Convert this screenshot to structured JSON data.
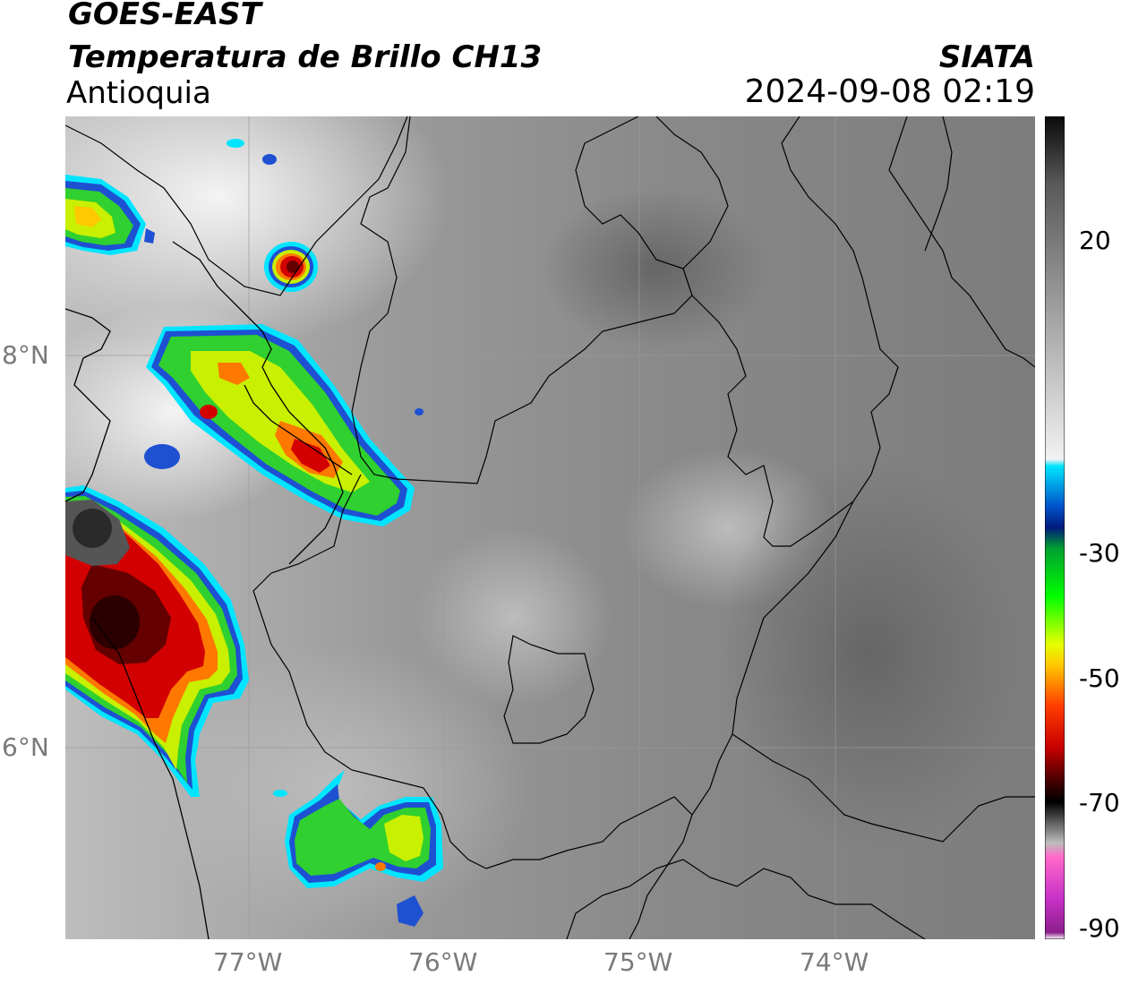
{
  "header": {
    "satellite": "GOES-EAST",
    "product": "Temperatura de Brillo CH13",
    "region": "Antioquia",
    "organization": "SIATA",
    "datetime": "2024-09-08 02:19"
  },
  "axes": {
    "lat_ticks": [
      "8°N",
      "6°N"
    ],
    "lon_ticks": [
      "77°W",
      "76°W",
      "75°W",
      "74°W"
    ]
  },
  "colorbar": {
    "ticks": [
      "20",
      "-30",
      "-50",
      "-70",
      "-90"
    ],
    "stops": [
      {
        "value": 30,
        "color": "#0a0a0a"
      },
      {
        "value": 20,
        "color": "#5a5a5a"
      },
      {
        "value": 0,
        "color": "#a6a6a6"
      },
      {
        "value": -20,
        "color": "#f2f2f2"
      },
      {
        "value": -21,
        "color": "#00e5ff"
      },
      {
        "value": -27,
        "color": "#0050c8"
      },
      {
        "value": -30,
        "color": "#001a7a"
      },
      {
        "value": -33,
        "color": "#00a030"
      },
      {
        "value": -40,
        "color": "#00ff00"
      },
      {
        "value": -47,
        "color": "#e6ff00"
      },
      {
        "value": -50,
        "color": "#ffc800"
      },
      {
        "value": -56,
        "color": "#ff3c00"
      },
      {
        "value": -62,
        "color": "#c80000"
      },
      {
        "value": -68,
        "color": "#2a0000"
      },
      {
        "value": -70,
        "color": "#000000"
      },
      {
        "value": -76,
        "color": "#bdbdbd"
      },
      {
        "value": -78,
        "color": "#ff69c8"
      },
      {
        "value": -84,
        "color": "#c832c8"
      },
      {
        "value": -89,
        "color": "#8c1e8c"
      },
      {
        "value": -90,
        "color": "#ffffff"
      }
    ]
  },
  "storm_palette": {
    "cloud_edge": "#00e5ff",
    "cold_blue": "#1e50d2",
    "green": "#2fd02f",
    "yellow_green": "#c8f000",
    "orange": "#ff7800",
    "red": "#d20000",
    "dark_red": "#640000",
    "black_gray": "#555555"
  }
}
